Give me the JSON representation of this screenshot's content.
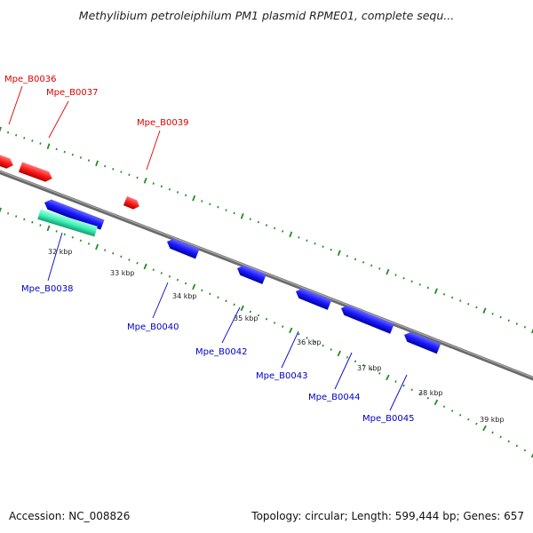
{
  "title": "Methylibium petroleiphilum PM1 plasmid RPME01, complete sequ...",
  "footer": {
    "accession": "Accession: NC_008826",
    "summary": "Topology: circular; Length: 599,444 bp; Genes: 657"
  },
  "colors": {
    "forward_gene": "#ff1a1a",
    "reverse_gene": "#1a1aff",
    "rna_gene": "#33f0b0",
    "backbone": "#888888",
    "dots": "#228b22",
    "forward_label": "#dd0000",
    "reverse_label": "#0000cc"
  },
  "ticks": [
    "32 kbp",
    "33 kbp",
    "34 kbp",
    "35 kbp",
    "36 kbp",
    "37 kbp",
    "38 kbp",
    "39 kbp"
  ],
  "forward_genes": [
    "Mpe_B0036",
    "Mpe_B0037",
    "Mpe_B0039"
  ],
  "reverse_genes": [
    "Mpe_B0038",
    "Mpe_B0040",
    "Mpe_B0042",
    "Mpe_B0043",
    "Mpe_B0044",
    "Mpe_B0045"
  ]
}
